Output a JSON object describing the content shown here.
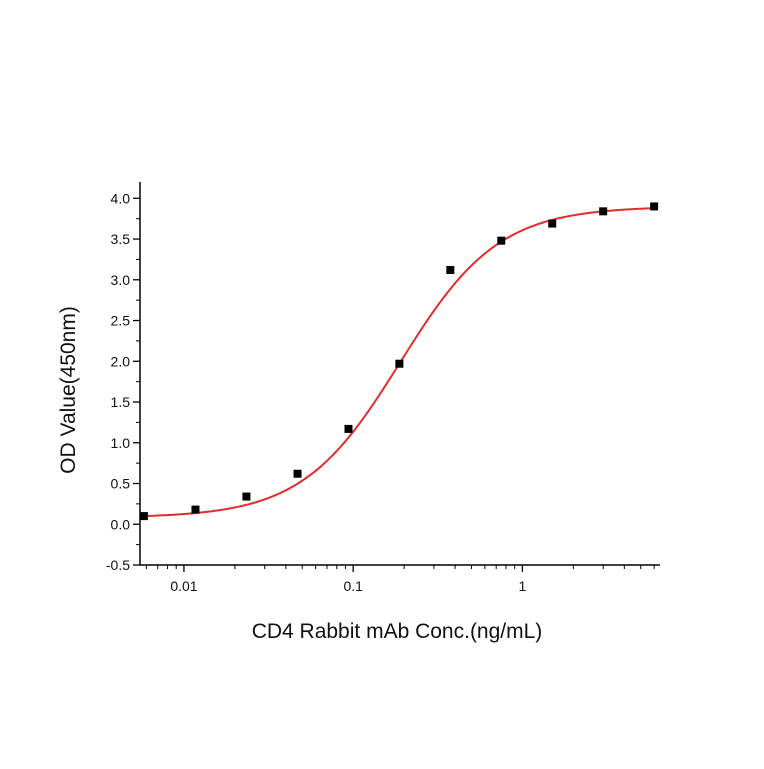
{
  "chart_data": {
    "type": "scatter",
    "xscale": "log",
    "xlabel": "CD4 Rabbit mAb Conc.(ng/mL)",
    "ylabel": "OD Value(450nm)",
    "xlim": [
      0.0055,
      6.5
    ],
    "ylim": [
      -0.5,
      4.2
    ],
    "x_ticks": [
      0.01,
      0.1,
      1
    ],
    "x_tick_labels": [
      "0.01",
      "0.1",
      "1"
    ],
    "y_ticks": [
      -0.5,
      0.0,
      0.5,
      1.0,
      1.5,
      2.0,
      2.5,
      3.0,
      3.5,
      4.0
    ],
    "y_tick_labels": [
      "-0.5",
      "0.0",
      "0.5",
      "1.0",
      "1.5",
      "2.0",
      "2.5",
      "3.0",
      "3.5",
      "4.0"
    ],
    "grid": false,
    "marker_color": "#000000",
    "fit_color": "#e32b2b",
    "series": [
      {
        "x": [
          0.0058,
          0.0117,
          0.0234,
          0.0469,
          0.0938,
          0.1875,
          0.375,
          0.75,
          1.5,
          3.0,
          6.0
        ],
        "y": [
          0.1,
          0.18,
          0.34,
          0.62,
          1.17,
          1.97,
          3.12,
          3.48,
          3.69,
          3.84,
          3.9
        ]
      }
    ],
    "fit_curve": {
      "model": "4PL",
      "bottom": 0.08,
      "top": 3.9,
      "ec50": 0.19,
      "hill": 1.5
    }
  }
}
